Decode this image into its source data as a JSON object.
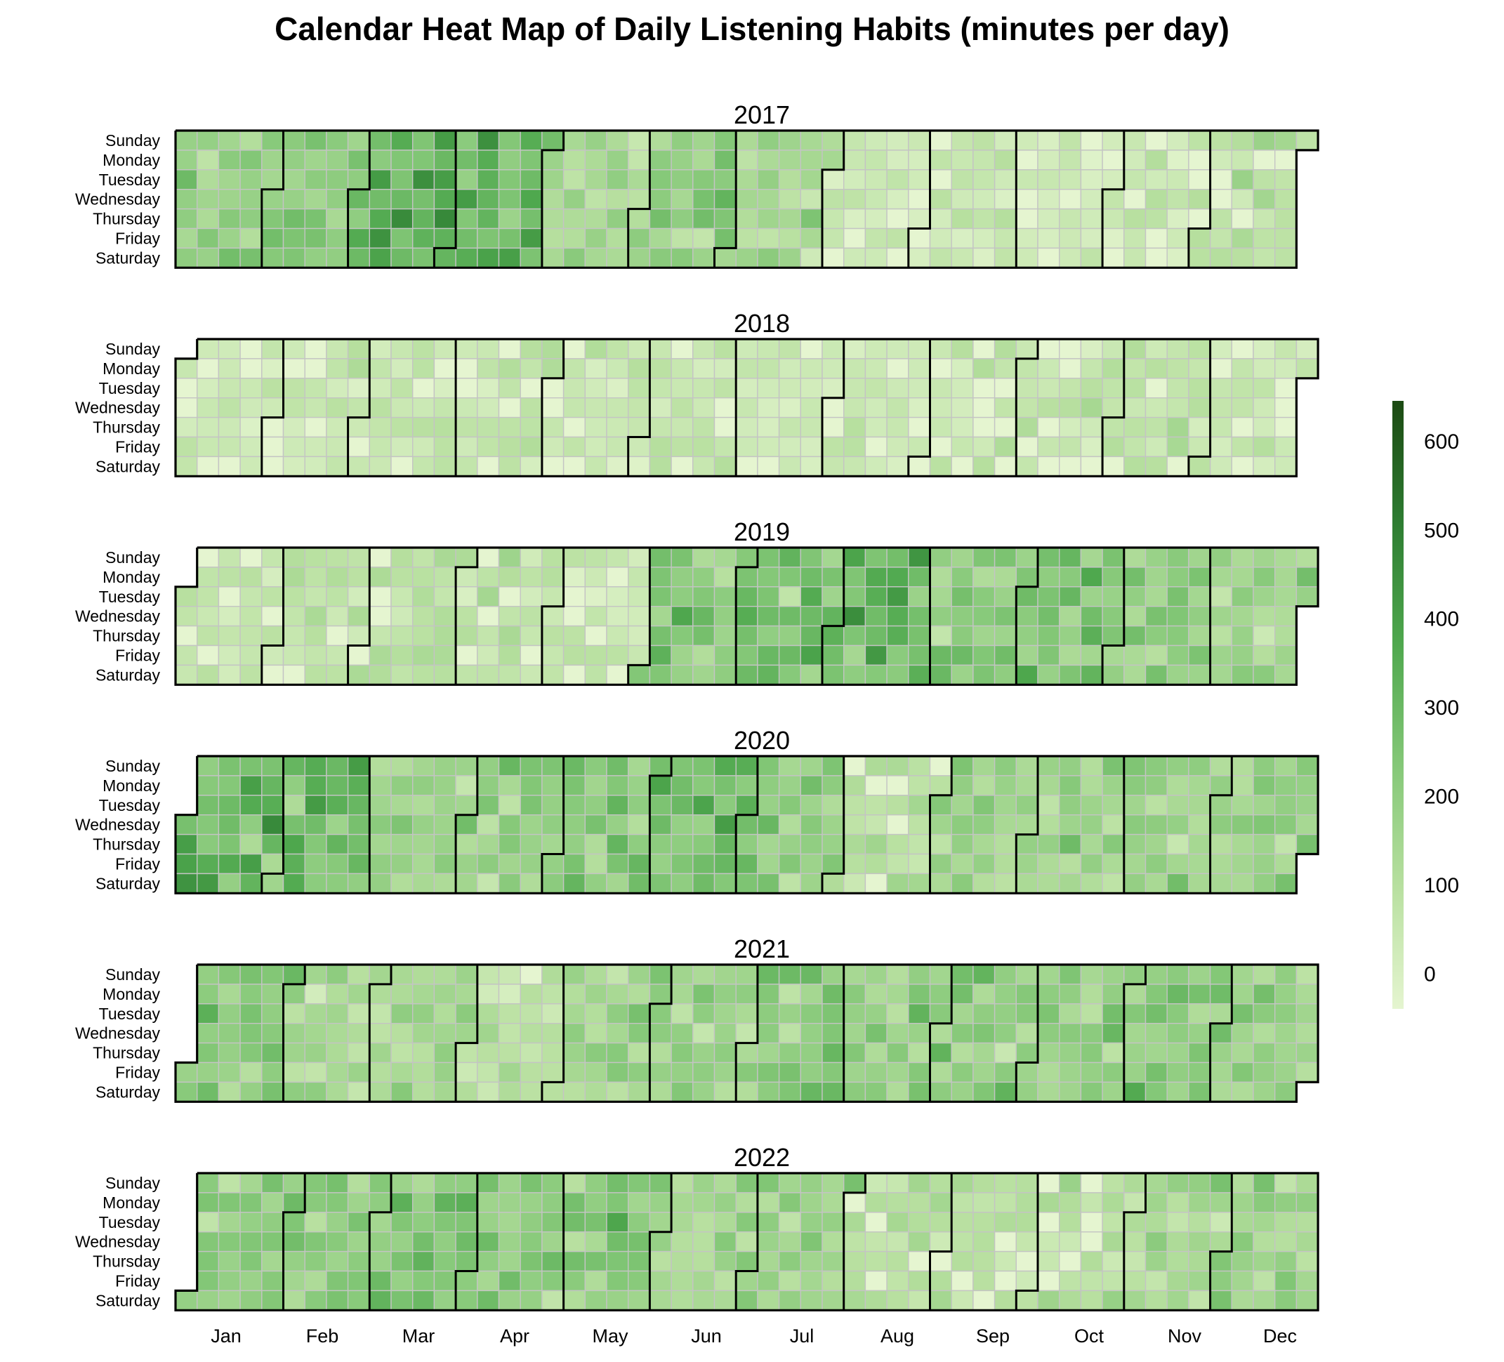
{
  "chart_data": {
    "type": "heatmap",
    "title": "Calendar Heat Map of Daily Listening Habits (minutes per day)",
    "years": [
      2017,
      2018,
      2019,
      2020,
      2021,
      2022
    ],
    "weekday_labels": [
      "Sunday",
      "Monday",
      "Tuesday",
      "Wednesday",
      "Thursday",
      "Friday",
      "Saturday"
    ],
    "month_labels": [
      "Jan",
      "Feb",
      "Mar",
      "Apr",
      "May",
      "Jun",
      "Jul",
      "Aug",
      "Sep",
      "Oct",
      "Nov",
      "Dec"
    ],
    "colorbar": {
      "min": -40,
      "max": 645,
      "ticks": [
        0,
        100,
        200,
        300,
        400,
        500,
        600
      ],
      "colors": [
        "#e5f5d0",
        "#b8e0a0",
        "#85c878",
        "#4fa84e",
        "#2e7d32",
        "#1c4a13"
      ]
    },
    "monthly_mean_minutes": {
      "2017": [
        190,
        230,
        310,
        290,
        150,
        190,
        140,
        40,
        60,
        30,
        50,
        90
      ],
      "2018": [
        40,
        50,
        60,
        70,
        60,
        50,
        40,
        40,
        70,
        60,
        80,
        50
      ],
      "2019": [
        60,
        70,
        90,
        80,
        50,
        230,
        250,
        300,
        200,
        240,
        200,
        170
      ],
      "2020": [
        290,
        260,
        160,
        200,
        230,
        300,
        190,
        110,
        170,
        160,
        160,
        170
      ],
      "2021": [
        220,
        140,
        140,
        90,
        170,
        160,
        200,
        210,
        200,
        190,
        220,
        180
      ],
      "2022": [
        210,
        200,
        250,
        200,
        230,
        140,
        160,
        100,
        90,
        110,
        140,
        170
      ]
    }
  }
}
